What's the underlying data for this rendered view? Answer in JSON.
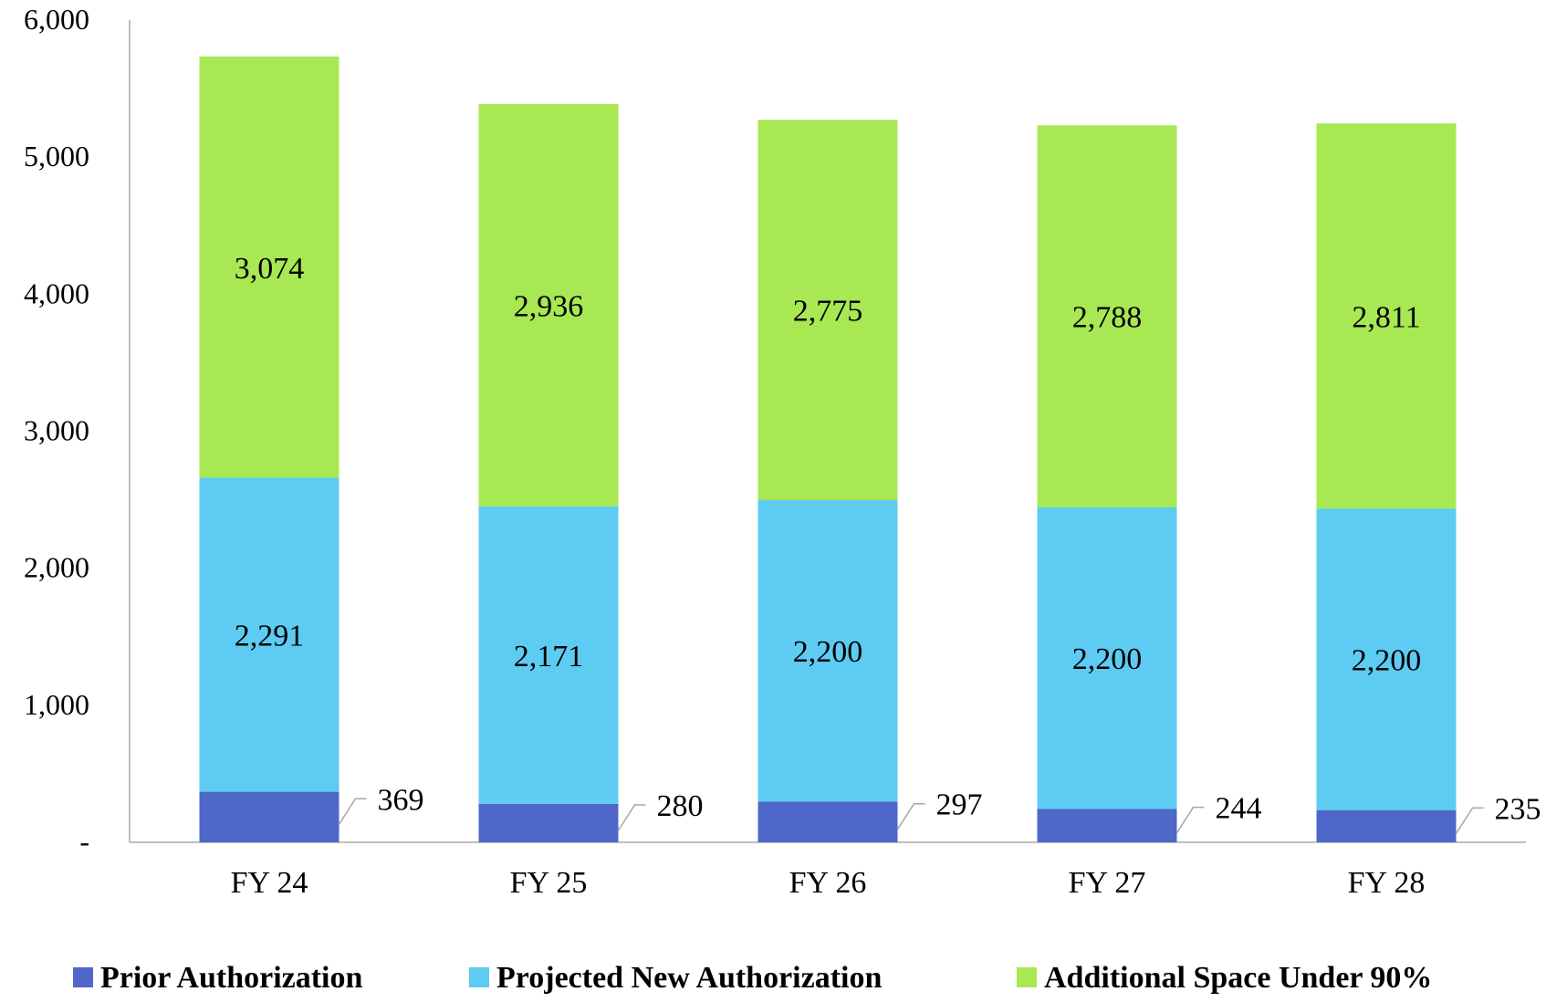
{
  "chart_data": {
    "type": "bar",
    "stacked": true,
    "categories": [
      "FY 24",
      "FY 25",
      "FY 26",
      "FY 27",
      "FY 28"
    ],
    "series": [
      {
        "name": "Prior Authorization",
        "color": "#4f67c8",
        "values": [
          369,
          280,
          297,
          244,
          235
        ]
      },
      {
        "name": "Projected New Authorization",
        "color": "#5ecbf2",
        "values": [
          2291,
          2171,
          2200,
          2200,
          2200
        ]
      },
      {
        "name": "Additional Space Under 90%",
        "color": "#a7e853",
        "values": [
          3074,
          2936,
          2775,
          2788,
          2811
        ]
      }
    ],
    "data_labels": [
      [
        "369",
        "280",
        "297",
        "244",
        "235"
      ],
      [
        "2,291",
        "2,171",
        "2,200",
        "2,200",
        "2,200"
      ],
      [
        "3,074",
        "2,936",
        "2,775",
        "2,788",
        "2,811"
      ]
    ],
    "yticks": [
      0,
      1000,
      2000,
      3000,
      4000,
      5000,
      6000
    ],
    "ytick_labels": [
      "-",
      "1,000",
      "2,000",
      "3,000",
      "4,000",
      "5,000",
      "6,000"
    ],
    "ylim": [
      0,
      6000
    ],
    "grid": false,
    "legend_position": "bottom"
  }
}
